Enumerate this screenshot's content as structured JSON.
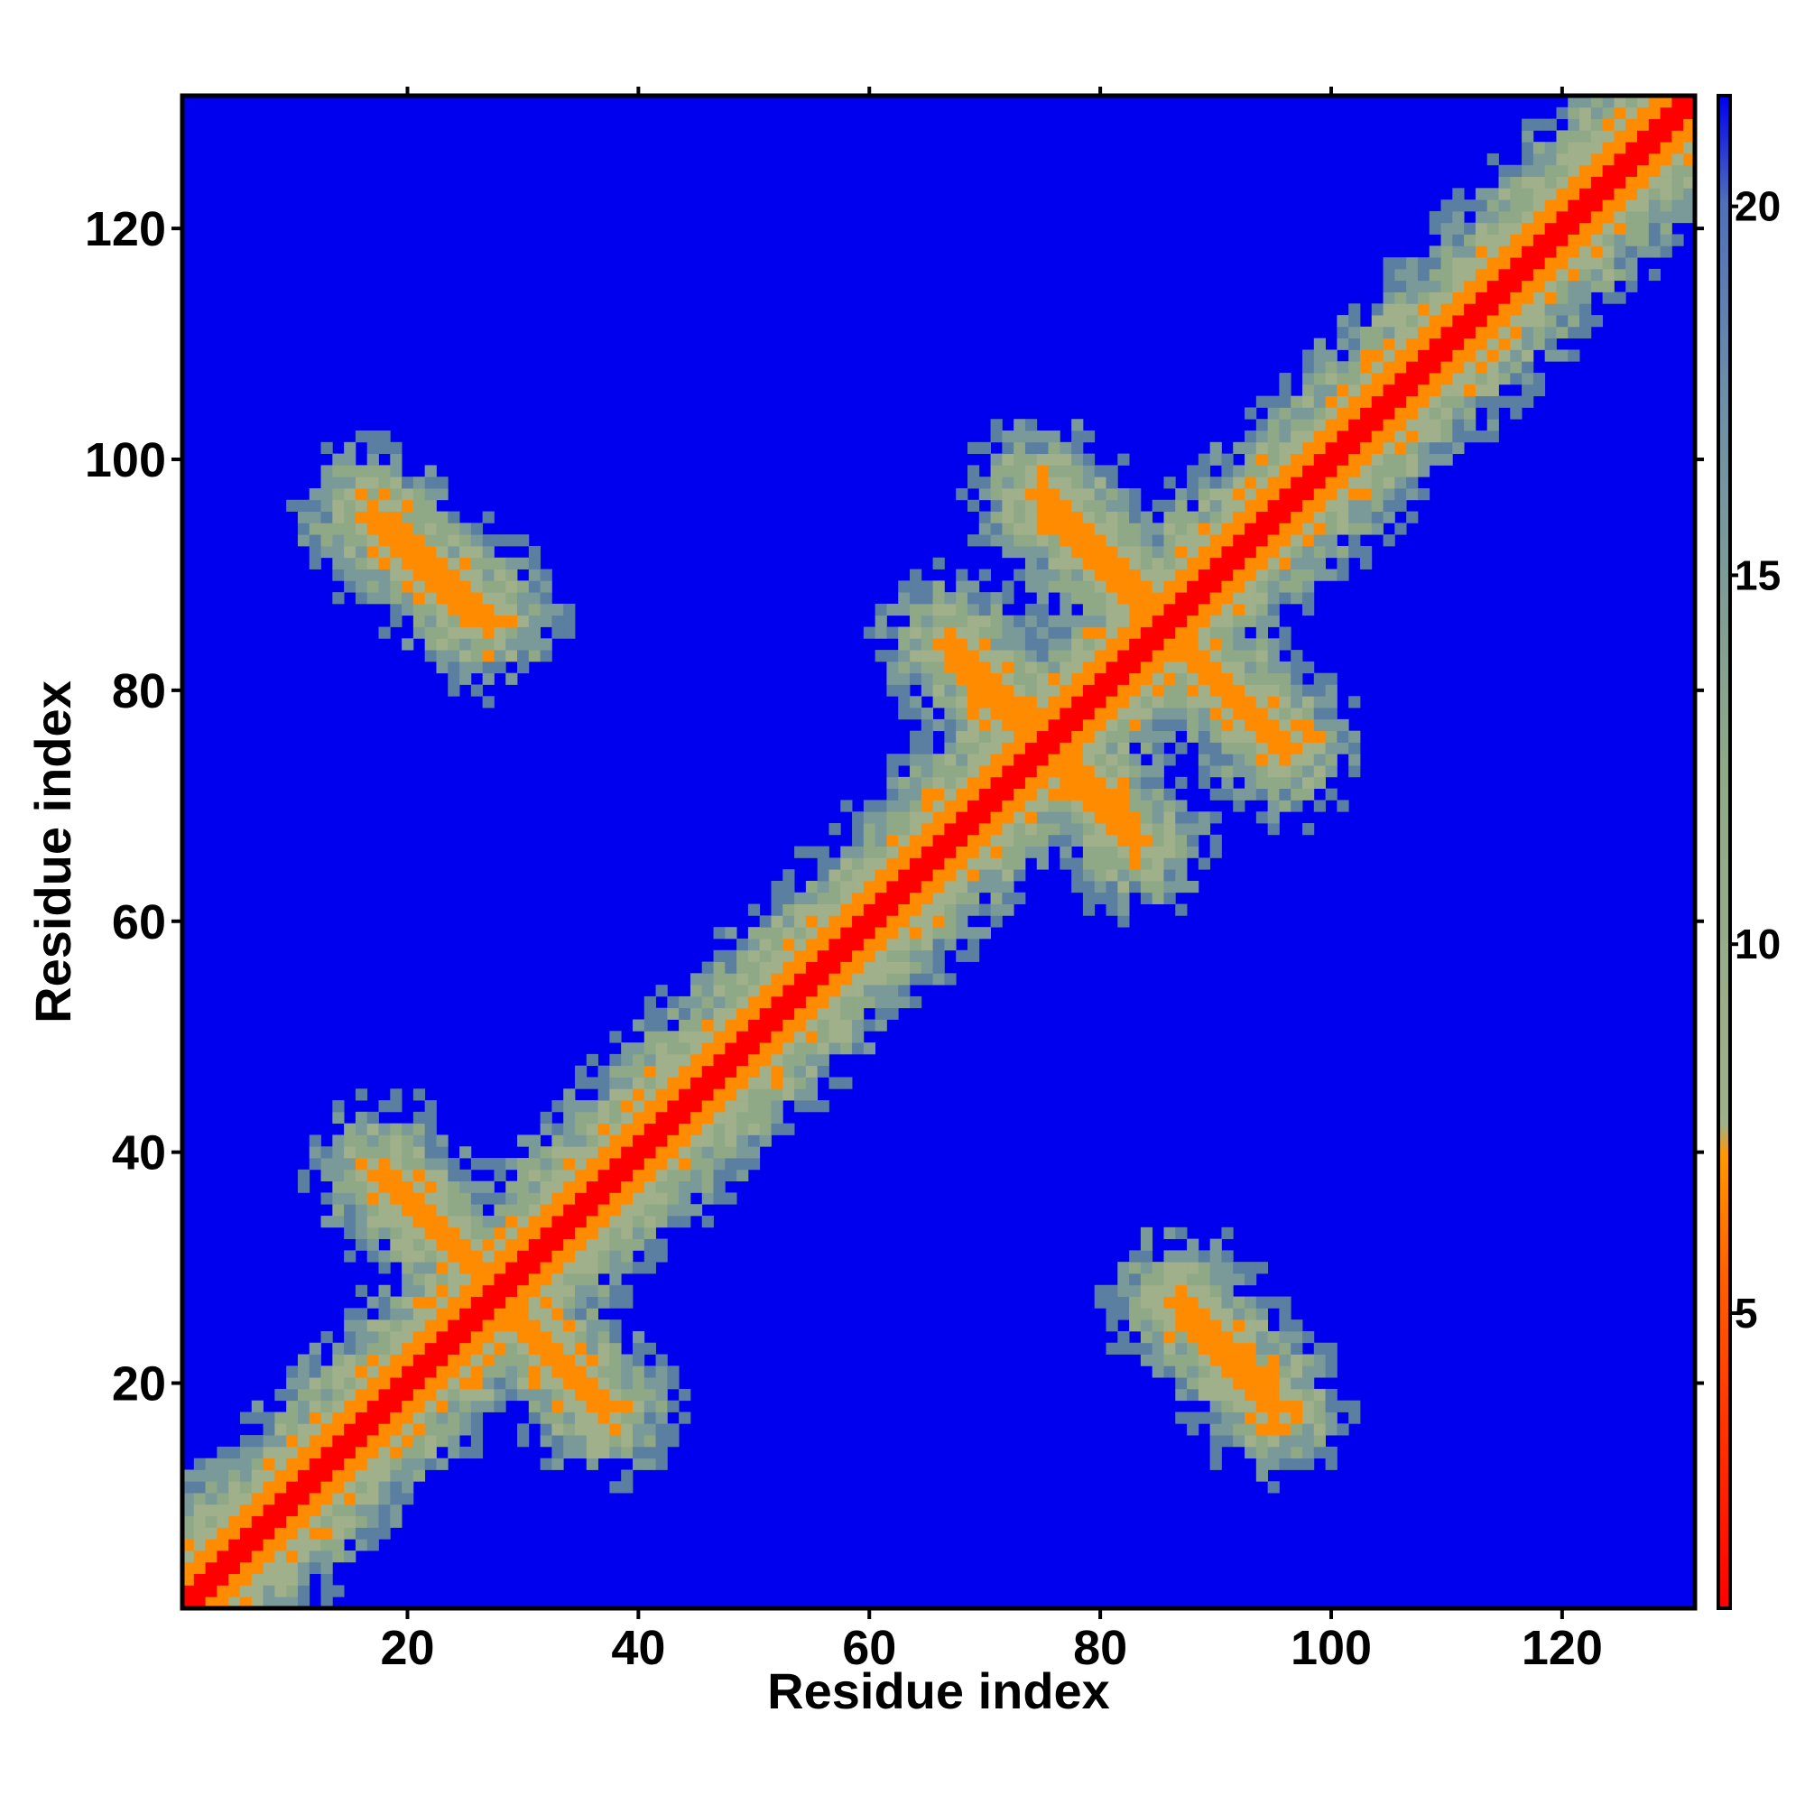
{
  "chart_data": {
    "type": "heatmap",
    "title": "",
    "xlabel": "Residue index",
    "ylabel": "Residue index",
    "xlim": [
      1,
      131
    ],
    "ylim": [
      1,
      131
    ],
    "x_ticks": [
      20,
      40,
      60,
      80,
      100,
      120
    ],
    "y_ticks": [
      20,
      40,
      60,
      80,
      100,
      120
    ],
    "colorbar": {
      "ticks": [
        5,
        10,
        15,
        20
      ],
      "range": [
        1,
        21.5
      ],
      "colors": [
        "#ff0000",
        "#ff8c00",
        "#8fa987",
        "#5a7fa0",
        "#0000ee"
      ]
    },
    "background_color": "#0000ee",
    "diagonal_color": "#ff0000",
    "grid": false,
    "contact_features": [
      {
        "kind": "diagonal",
        "from": [
          1,
          1
        ],
        "to": [
          131,
          131
        ]
      },
      {
        "kind": "antiparallel",
        "from": [
          17,
          95
        ],
        "to": [
          27,
          86
        ]
      },
      {
        "kind": "antiparallel",
        "from": [
          18,
          38
        ],
        "to": [
          26,
          30
        ]
      },
      {
        "kind": "antiparallel",
        "from": [
          29,
          26
        ],
        "to": [
          37,
          18
        ]
      },
      {
        "kind": "antiparallel",
        "from": [
          67,
          84
        ],
        "to": [
          75,
          75
        ]
      },
      {
        "kind": "antiparallel",
        "from": [
          76,
          75
        ],
        "to": [
          83,
          67
        ]
      },
      {
        "kind": "antiparallel",
        "from": [
          75,
          97
        ],
        "to": [
          84,
          87
        ]
      },
      {
        "kind": "antiparallel",
        "from": [
          87,
          84
        ],
        "to": [
          96,
          75
        ]
      },
      {
        "kind": "antiparallel",
        "from": [
          87,
          27
        ],
        "to": [
          95,
          18
        ]
      }
    ]
  }
}
